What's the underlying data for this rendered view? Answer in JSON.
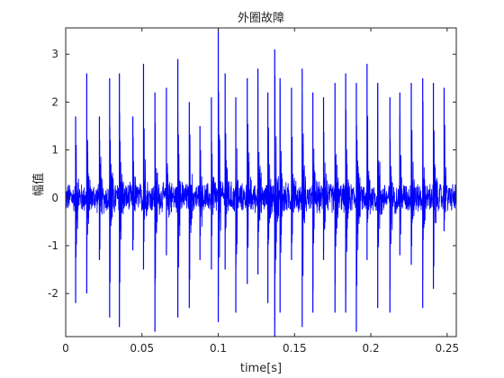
{
  "chart_data": {
    "type": "line",
    "title": "外圈故障",
    "xlabel": "time[s]",
    "ylabel": "幅值",
    "xlim": [
      0,
      0.256
    ],
    "ylim": [
      -2.9,
      3.55
    ],
    "xticks": [
      0,
      0.05,
      0.1,
      0.15,
      0.2,
      0.25
    ],
    "xtick_labels": [
      "0",
      "0.05",
      "0.1",
      "0.15",
      "0.2",
      "0.25"
    ],
    "yticks": [
      -2,
      -1,
      0,
      1,
      2,
      3
    ],
    "ytick_labels": [
      "-2",
      "-1",
      "0",
      "1",
      "2",
      "3"
    ],
    "grid": false,
    "line_color": "#0000ff",
    "series": [
      {
        "impulses": [
          {
            "t": 0.0065,
            "pos": 1.7,
            "neg": -2.2
          },
          {
            "t": 0.0138,
            "pos": 2.6,
            "neg": -2.0
          },
          {
            "t": 0.0221,
            "pos": 1.7,
            "neg": -1.3
          },
          {
            "t": 0.0288,
            "pos": 2.5,
            "neg": -2.5
          },
          {
            "t": 0.0352,
            "pos": 2.6,
            "neg": -2.7
          },
          {
            "t": 0.044,
            "pos": 1.7,
            "neg": -1.1
          },
          {
            "t": 0.051,
            "pos": 2.8,
            "neg": -1.5
          },
          {
            "t": 0.0585,
            "pos": 2.2,
            "neg": -2.8
          },
          {
            "t": 0.066,
            "pos": 2.3,
            "neg": -1.2
          },
          {
            "t": 0.0735,
            "pos": 2.9,
            "neg": -2.5
          },
          {
            "t": 0.081,
            "pos": 2.0,
            "neg": -2.3
          },
          {
            "t": 0.088,
            "pos": 1.5,
            "neg": -1.3
          },
          {
            "t": 0.0955,
            "pos": 2.1,
            "neg": -1.5
          },
          {
            "t": 0.1,
            "pos": 3.55,
            "neg": -2.6
          },
          {
            "t": 0.1045,
            "pos": 2.6,
            "neg": -1.5
          },
          {
            "t": 0.1115,
            "pos": 2.1,
            "neg": -2.4
          },
          {
            "t": 0.119,
            "pos": 2.5,
            "neg": -1.8
          },
          {
            "t": 0.126,
            "pos": 2.7,
            "neg": -1.6
          },
          {
            "t": 0.1325,
            "pos": 2.2,
            "neg": -2.2
          },
          {
            "t": 0.137,
            "pos": 3.1,
            "neg": -2.9
          },
          {
            "t": 0.1405,
            "pos": 2.5,
            "neg": -2.4
          },
          {
            "t": 0.148,
            "pos": 2.3,
            "neg": -1.3
          },
          {
            "t": 0.155,
            "pos": 2.7,
            "neg": -2.7
          },
          {
            "t": 0.162,
            "pos": 2.2,
            "neg": -2.4
          },
          {
            "t": 0.169,
            "pos": 2.1,
            "neg": -1.3
          },
          {
            "t": 0.1765,
            "pos": 2.4,
            "neg": -2.4
          },
          {
            "t": 0.1835,
            "pos": 2.6,
            "neg": -2.4
          },
          {
            "t": 0.1905,
            "pos": 2.4,
            "neg": -2.8
          },
          {
            "t": 0.1975,
            "pos": 2.8,
            "neg": -1.3
          },
          {
            "t": 0.2045,
            "pos": 2.4,
            "neg": -2.3
          },
          {
            "t": 0.2125,
            "pos": 2.1,
            "neg": -2.4
          },
          {
            "t": 0.219,
            "pos": 2.2,
            "neg": -1.2
          },
          {
            "t": 0.2265,
            "pos": 2.4,
            "neg": -1.4
          },
          {
            "t": 0.234,
            "pos": 2.5,
            "neg": -2.3
          },
          {
            "t": 0.241,
            "pos": 2.4,
            "neg": -1.9
          },
          {
            "t": 0.248,
            "pos": 2.3,
            "neg": -0.7
          }
        ],
        "noise_amplitude": 0.35,
        "decay_time": 0.0009
      }
    ]
  }
}
